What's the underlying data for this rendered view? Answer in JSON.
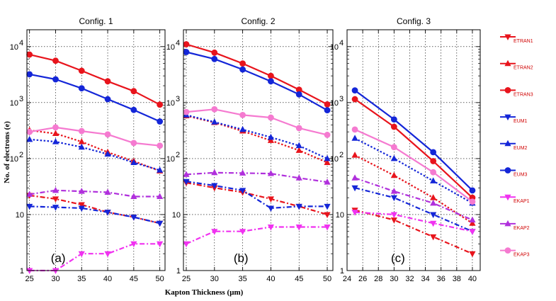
{
  "chart_data": {
    "type": "line",
    "y_scale": "log",
    "ylabel": "No. of electrons (e)",
    "xlabel": "Kapton Thickness (μm)",
    "ylim": [
      1,
      20000
    ],
    "legend_placement": "right",
    "series_styles": {
      "ETRAN1": {
        "color": "#e8141c",
        "marker": "tri_down",
        "dash": "dashdot"
      },
      "ETRAN2": {
        "color": "#e8141c",
        "marker": "tri_up",
        "dash": "dot"
      },
      "ETRAN3": {
        "color": "#e8141c",
        "marker": "circle",
        "dash": "solid"
      },
      "EUM1": {
        "color": "#1426d8",
        "marker": "tri_down",
        "dash": "dashdot"
      },
      "EUM2": {
        "color": "#1426d8",
        "marker": "tri_up",
        "dash": "dot"
      },
      "EUM3": {
        "color": "#1426d8",
        "marker": "circle",
        "dash": "solid"
      },
      "EKAP1": {
        "color": "#f032f0",
        "marker": "tri_down",
        "dash": "dashdot"
      },
      "EKAP2": {
        "color": "#b030dc",
        "marker": "tri_up",
        "dash": "dashdot"
      },
      "EKAP3": {
        "color": "#f57ad0",
        "marker": "circle",
        "dash": "solid"
      }
    },
    "panels": [
      {
        "title": "Config. 1",
        "tag": "(a)",
        "xlim": [
          24.5,
          51
        ],
        "xticks": [
          25,
          30,
          35,
          40,
          45,
          50
        ],
        "x": [
          25,
          30,
          35,
          40,
          45,
          50
        ],
        "series": [
          {
            "name": "ETRAN1",
            "values": [
              22,
              19,
              15,
              11,
              9,
              7
            ]
          },
          {
            "name": "ETRAN2",
            "values": [
              320,
              280,
              200,
              130,
              90,
              60
            ]
          },
          {
            "name": "ETRAN3",
            "values": [
              7200,
              5600,
              3700,
              2400,
              1600,
              920
            ]
          },
          {
            "name": "EUM1",
            "values": [
              14,
              13.5,
              13,
              11,
              9,
              7
            ]
          },
          {
            "name": "EUM2",
            "values": [
              220,
              200,
              160,
              120,
              85,
              62
            ]
          },
          {
            "name": "EUM3",
            "values": [
              3200,
              2600,
              1800,
              1150,
              740,
              460
            ]
          },
          {
            "name": "EKAP1",
            "values": [
              1,
              1,
              2,
              2,
              3,
              3
            ]
          },
          {
            "name": "EKAP2",
            "values": [
              23,
              27,
              26,
              25,
              21,
              21
            ]
          },
          {
            "name": "EKAP3",
            "values": [
              300,
              360,
              310,
              270,
              190,
              170
            ]
          }
        ]
      },
      {
        "title": "Config. 2",
        "tag": "(b)",
        "xlim": [
          24.5,
          51
        ],
        "xticks": [
          25,
          30,
          35,
          40,
          45,
          50
        ],
        "x": [
          25,
          30,
          35,
          40,
          45,
          50
        ],
        "series": [
          {
            "name": "ETRAN1",
            "values": [
              37,
              30,
              25,
              19,
              14,
              10
            ]
          },
          {
            "name": "ETRAN2",
            "values": [
              580,
              440,
              310,
              210,
              140,
              85
            ]
          },
          {
            "name": "ETRAN3",
            "values": [
              11000,
              7800,
              5000,
              3000,
              1700,
              930
            ]
          },
          {
            "name": "EUM1",
            "values": [
              39,
              33,
              27,
              13,
              14,
              14
            ]
          },
          {
            "name": "EUM2",
            "values": [
              600,
              450,
              330,
              240,
              170,
              100
            ]
          },
          {
            "name": "EUM3",
            "values": [
              8000,
              6000,
              3900,
              2400,
              1400,
              730
            ]
          },
          {
            "name": "EKAP1",
            "values": [
              3,
              5,
              5,
              6,
              6,
              6
            ]
          },
          {
            "name": "EKAP2",
            "values": [
              52,
              56,
              55,
              54,
              45,
              38
            ]
          },
          {
            "name": "EKAP3",
            "values": [
              680,
              760,
              600,
              540,
              350,
              265
            ]
          }
        ]
      },
      {
        "title": "Config. 3",
        "tag": "(c)",
        "xlim": [
          24,
          41
        ],
        "xticks": [
          24,
          26,
          28,
          30,
          32,
          34,
          36,
          38,
          40
        ],
        "x": [
          25,
          30,
          35,
          40
        ],
        "series": [
          {
            "name": "ETRAN1",
            "values": [
              12,
              8,
              4,
              2
            ]
          },
          {
            "name": "ETRAN2",
            "values": [
              115,
              50,
              20,
              7
            ]
          },
          {
            "name": "ETRAN3",
            "values": [
              1150,
              370,
              90,
              20
            ]
          },
          {
            "name": "EUM1",
            "values": [
              30,
              20,
              10,
              5
            ]
          },
          {
            "name": "EUM2",
            "values": [
              230,
              100,
              40,
              16
            ]
          },
          {
            "name": "EUM3",
            "values": [
              1650,
              500,
              130,
              27
            ]
          },
          {
            "name": "EKAP1",
            "values": [
              11,
              10,
              7,
              5
            ]
          },
          {
            "name": "EKAP2",
            "values": [
              45,
              26,
              16,
              8
            ]
          },
          {
            "name": "EKAP3",
            "values": [
              330,
              160,
              57,
              17
            ]
          }
        ]
      }
    ],
    "legend": [
      "ETRAN1",
      "ETRAN2",
      "ETRAN3",
      "EUM1",
      "EUM2",
      "EUM3",
      "EKAP1",
      "EKAP2",
      "EKAP3"
    ]
  }
}
